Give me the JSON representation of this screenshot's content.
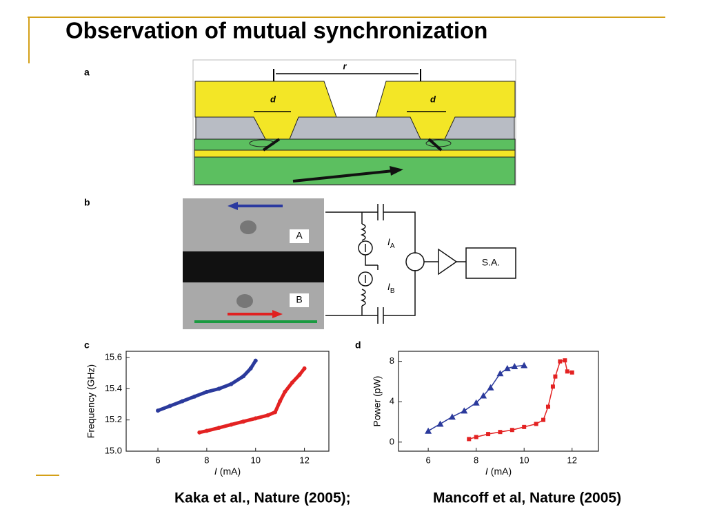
{
  "title": "Observation of mutual synchronization",
  "panel_a": {
    "label": "a",
    "r": "r",
    "d_left": "d",
    "d_right": "d"
  },
  "panel_b": {
    "label": "b",
    "A": "A",
    "B": "B",
    "IA": {
      "italic": "I",
      "sub": "A"
    },
    "IB": {
      "italic": "I",
      "sub": "B"
    },
    "sa": "S.A."
  },
  "panel_c": {
    "label": "c"
  },
  "panel_d": {
    "label": "d"
  },
  "chart_data": [
    {
      "type": "scatter",
      "ylabel": "Frequency (GHz)",
      "xlabel": {
        "italic": "I",
        "unit": "(mA)"
      },
      "xlim": [
        4.7,
        13
      ],
      "xticks": [
        6,
        8,
        10,
        12
      ],
      "ylim": [
        15.0,
        15.64
      ],
      "yticks": [
        {
          "value": 15.0,
          "label": "15.0"
        },
        15.2,
        15.4,
        15.6
      ],
      "series": [
        {
          "color": "#2b3a9c",
          "marker": "circle",
          "x": [
            6,
            6.5,
            7,
            7.5,
            8,
            8.5,
            9,
            9.5,
            9.8,
            10
          ],
          "values": [
            15.26,
            15.29,
            15.32,
            15.35,
            15.38,
            15.4,
            15.43,
            15.48,
            15.53,
            15.58
          ]
        },
        {
          "color": "#e32222",
          "marker": "circle",
          "x": [
            7.7,
            8,
            8.5,
            9,
            9.5,
            10,
            10.5,
            10.8,
            11,
            11.2,
            11.5,
            11.8,
            12
          ],
          "values": [
            15.12,
            15.13,
            15.15,
            15.17,
            15.19,
            15.21,
            15.23,
            15.25,
            15.32,
            15.38,
            15.44,
            15.49,
            15.53
          ]
        }
      ]
    },
    {
      "type": "scatter",
      "ylabel": "Power (pW)",
      "xlabel": {
        "italic": "I",
        "unit": "(mA)"
      },
      "xlim": [
        4.76,
        13.1
      ],
      "xticks": [
        6,
        8,
        10,
        12
      ],
      "ylim": [
        -0.9,
        9
      ],
      "yticks": [
        0,
        4,
        8
      ],
      "series": [
        {
          "color": "#2b3a9c",
          "marker": "triangle",
          "x": [
            6,
            6.5,
            7,
            7.5,
            8,
            8.3,
            8.6,
            9,
            9.3,
            9.6,
            10
          ],
          "values": [
            1.1,
            1.8,
            2.5,
            3.1,
            3.9,
            4.6,
            5.4,
            6.8,
            7.3,
            7.5,
            7.6
          ]
        },
        {
          "color": "#e32222",
          "marker": "square",
          "x": [
            7.7,
            8,
            8.5,
            9,
            9.5,
            10,
            10.5,
            10.8,
            11,
            11.2,
            11.3,
            11.5,
            11.7,
            11.8,
            12
          ],
          "values": [
            0.3,
            0.5,
            0.8,
            1.0,
            1.2,
            1.5,
            1.8,
            2.2,
            3.5,
            5.5,
            6.5,
            8.0,
            8.1,
            7.0,
            6.9
          ]
        }
      ]
    }
  ],
  "citation": {
    "left": "Kaka et al., Nature (2005);",
    "right": "Mancoff et al, Nature (2005)"
  }
}
